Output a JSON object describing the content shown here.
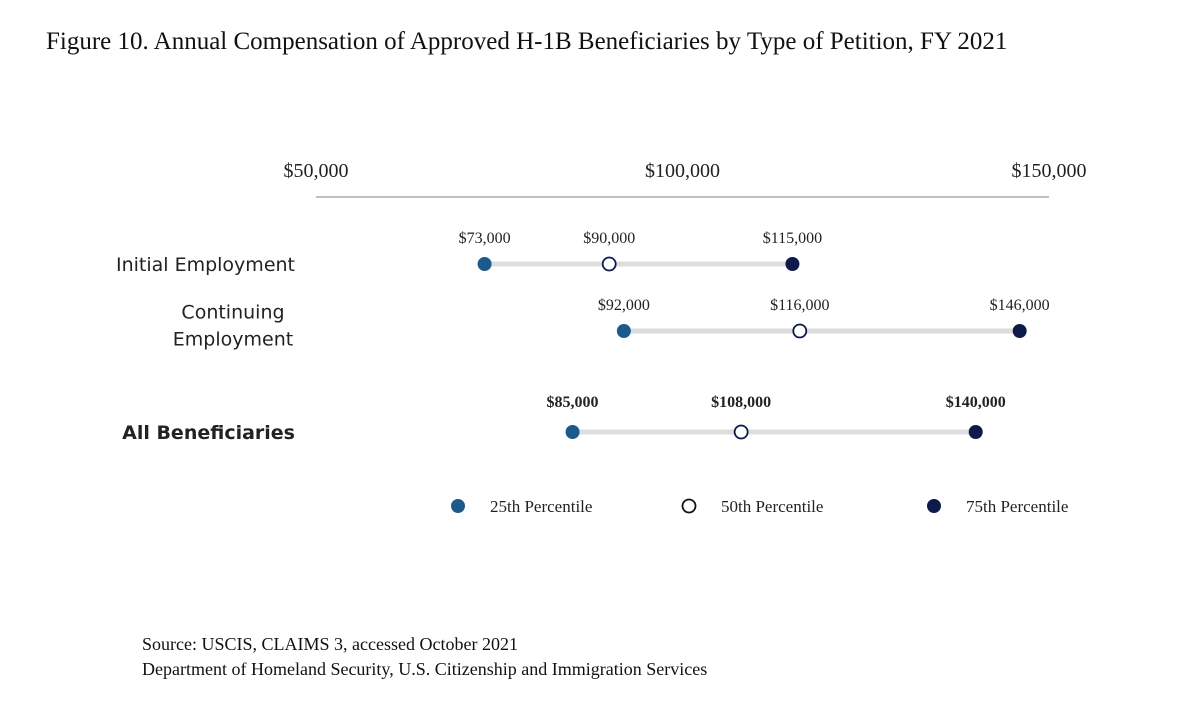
{
  "chart_data": {
    "type": "dot-range",
    "title": "Figure 10. Annual Compensation of Approved H-1B Beneficiaries by Type of Petition, FY 2021",
    "xlim": [
      50000,
      150000
    ],
    "x_ticks": [
      50000,
      100000,
      150000
    ],
    "x_tick_labels": [
      "$50,000",
      "$100,000",
      "$150,000"
    ],
    "grid": false,
    "legend_position": "bottom",
    "series": [
      {
        "name": "25th Percentile",
        "color": "#1c5a8c",
        "style": "filled"
      },
      {
        "name": "50th Percentile",
        "color": "#ffffff",
        "style": "hollow"
      },
      {
        "name": "75th Percentile",
        "color": "#0e1a4a",
        "style": "filled"
      }
    ],
    "rows": [
      {
        "label": [
          "Initial Employment"
        ],
        "bold": false,
        "values": [
          73000,
          90000,
          115000
        ],
        "value_labels": [
          "$73,000",
          "$90,000",
          "$115,000"
        ]
      },
      {
        "label": [
          "Continuing",
          "Employment"
        ],
        "bold": false,
        "values": [
          92000,
          116000,
          146000
        ],
        "value_labels": [
          "$92,000",
          "$116,000",
          "$146,000"
        ]
      },
      {
        "label": [
          "All Beneficiaries"
        ],
        "bold": true,
        "values": [
          85000,
          108000,
          140000
        ],
        "value_labels": [
          "$85,000",
          "$108,000",
          "$140,000"
        ]
      }
    ]
  },
  "source": {
    "line1": "Source: USCIS, CLAIMS 3, accessed October 2021",
    "line2": "Department of Homeland Security, U.S. Citizenship and Immigration Services"
  },
  "colors": {
    "range_line": "#dddddd",
    "axis_line": "#9a9a9a",
    "dot_outline": "#0e1a4a"
  }
}
